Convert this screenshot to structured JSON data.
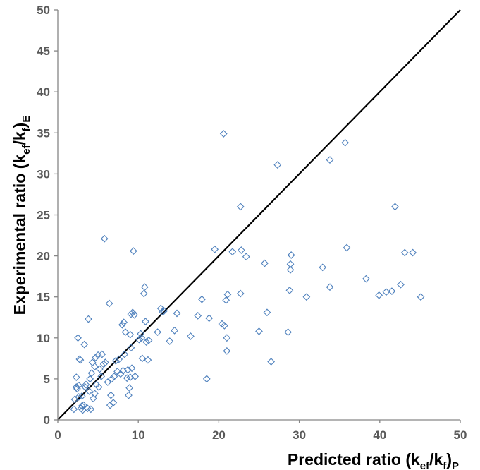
{
  "chart_data": {
    "type": "scatter",
    "xlabel": "Predicted ratio (kef/kf)P",
    "ylabel": "Experimental ratio (kef/kf)E",
    "xlabel_parts": {
      "main": "Predicted ratio (k",
      "sub1": "ef",
      "mid": "/k",
      "sub2": "f",
      "close": ")",
      "sub3": "P"
    },
    "ylabel_parts": {
      "main": "Experimental ratio (k",
      "sub1": "ef",
      "mid": "/k",
      "sub2": "f",
      "close": ")",
      "sub3": "E"
    },
    "xlim": [
      0,
      50
    ],
    "ylim": [
      0,
      50
    ],
    "xticks": [
      0,
      10,
      20,
      30,
      40,
      50
    ],
    "yticks": [
      0,
      5,
      10,
      15,
      20,
      25,
      30,
      35,
      40,
      45,
      50
    ],
    "grid": false,
    "legend": "none",
    "colors": {
      "marker": "#4f81bd",
      "reference_line": "#000000",
      "axis": "#868686",
      "tick_text": "#595959"
    },
    "reference_line": {
      "label": "",
      "points": [
        [
          0,
          0
        ],
        [
          50,
          50
        ]
      ]
    },
    "series": [
      {
        "marker": "open-diamond",
        "points": [
          [
            2.0,
            1.3
          ],
          [
            2.1,
            2.5
          ],
          [
            2.3,
            4.0
          ],
          [
            2.4,
            3.8
          ],
          [
            2.3,
            5.2
          ],
          [
            2.5,
            10.0
          ],
          [
            2.6,
            2.8
          ],
          [
            2.6,
            4.2
          ],
          [
            2.7,
            7.4
          ],
          [
            2.8,
            7.3
          ],
          [
            2.9,
            1.4
          ],
          [
            3.0,
            1.7
          ],
          [
            3.0,
            2.9
          ],
          [
            3.1,
            1.2
          ],
          [
            3.2,
            1.8
          ],
          [
            3.3,
            9.2
          ],
          [
            3.4,
            4.0
          ],
          [
            3.5,
            4.3
          ],
          [
            3.7,
            1.4
          ],
          [
            3.8,
            12.3
          ],
          [
            3.9,
            3.5
          ],
          [
            4.0,
            5.0
          ],
          [
            4.1,
            1.3
          ],
          [
            4.2,
            5.7
          ],
          [
            4.3,
            7.0
          ],
          [
            4.4,
            2.6
          ],
          [
            4.6,
            3.2
          ],
          [
            4.6,
            6.5
          ],
          [
            4.7,
            7.6
          ],
          [
            4.8,
            4.3
          ],
          [
            5.0,
            7.9
          ],
          [
            5.1,
            4.0
          ],
          [
            5.2,
            6.2
          ],
          [
            5.4,
            5.3
          ],
          [
            5.5,
            8.0
          ],
          [
            5.7,
            6.8
          ],
          [
            5.8,
            22.1
          ],
          [
            5.9,
            7.0
          ],
          [
            6.2,
            4.6
          ],
          [
            6.4,
            14.2
          ],
          [
            6.5,
            1.8
          ],
          [
            6.6,
            3.0
          ],
          [
            6.7,
            5.0
          ],
          [
            6.9,
            2.1
          ],
          [
            7.0,
            5.3
          ],
          [
            7.2,
            7.2
          ],
          [
            7.4,
            5.9
          ],
          [
            7.6,
            7.4
          ],
          [
            7.8,
            5.6
          ],
          [
            8.0,
            11.6
          ],
          [
            8.1,
            6.0
          ],
          [
            8.2,
            11.9
          ],
          [
            8.3,
            8.0
          ],
          [
            8.4,
            10.7
          ],
          [
            8.6,
            5.1
          ],
          [
            8.7,
            6.1
          ],
          [
            8.8,
            3.0
          ],
          [
            8.9,
            3.9
          ],
          [
            9.0,
            5.2
          ],
          [
            9.0,
            10.4
          ],
          [
            9.1,
            8.8
          ],
          [
            9.1,
            12.9
          ],
          [
            9.2,
            6.3
          ],
          [
            9.3,
            13.1
          ],
          [
            9.4,
            20.6
          ],
          [
            9.5,
            12.8
          ],
          [
            9.6,
            5.3
          ],
          [
            10.1,
            9.8
          ],
          [
            10.3,
            10.5
          ],
          [
            10.4,
            10.0
          ],
          [
            10.5,
            7.5
          ],
          [
            10.7,
            15.4
          ],
          [
            10.8,
            16.2
          ],
          [
            10.9,
            12.0
          ],
          [
            11.0,
            9.5
          ],
          [
            11.2,
            7.3
          ],
          [
            11.3,
            9.7
          ],
          [
            12.4,
            10.7
          ],
          [
            12.8,
            13.6
          ],
          [
            13.0,
            13.2
          ],
          [
            13.2,
            13.3
          ],
          [
            13.9,
            9.6
          ],
          [
            14.5,
            10.9
          ],
          [
            14.8,
            13.0
          ],
          [
            16.5,
            10.2
          ],
          [
            17.4,
            12.7
          ],
          [
            17.9,
            14.7
          ],
          [
            18.5,
            5.0
          ],
          [
            18.8,
            12.4
          ],
          [
            19.5,
            20.8
          ],
          [
            20.4,
            11.7
          ],
          [
            20.6,
            34.9
          ],
          [
            20.7,
            11.5
          ],
          [
            20.9,
            14.6
          ],
          [
            21.0,
            8.4
          ],
          [
            21.0,
            10.0
          ],
          [
            21.1,
            15.3
          ],
          [
            21.7,
            20.5
          ],
          [
            22.7,
            15.4
          ],
          [
            22.7,
            26.0
          ],
          [
            22.8,
            20.7
          ],
          [
            23.4,
            19.9
          ],
          [
            25.0,
            10.8
          ],
          [
            25.7,
            19.1
          ],
          [
            26.0,
            13.1
          ],
          [
            26.5,
            7.1
          ],
          [
            27.3,
            31.1
          ],
          [
            28.6,
            10.7
          ],
          [
            28.8,
            15.8
          ],
          [
            28.9,
            19.0
          ],
          [
            28.9,
            18.3
          ],
          [
            29.0,
            20.1
          ],
          [
            30.9,
            15.0
          ],
          [
            32.9,
            18.6
          ],
          [
            33.8,
            16.2
          ],
          [
            33.8,
            31.7
          ],
          [
            35.7,
            33.8
          ],
          [
            35.9,
            21.0
          ],
          [
            38.3,
            17.2
          ],
          [
            39.9,
            15.2
          ],
          [
            40.8,
            15.6
          ],
          [
            41.5,
            15.7
          ],
          [
            41.9,
            26.0
          ],
          [
            42.6,
            16.5
          ],
          [
            43.1,
            20.4
          ],
          [
            44.1,
            20.4
          ],
          [
            45.1,
            15.0
          ]
        ]
      }
    ]
  }
}
